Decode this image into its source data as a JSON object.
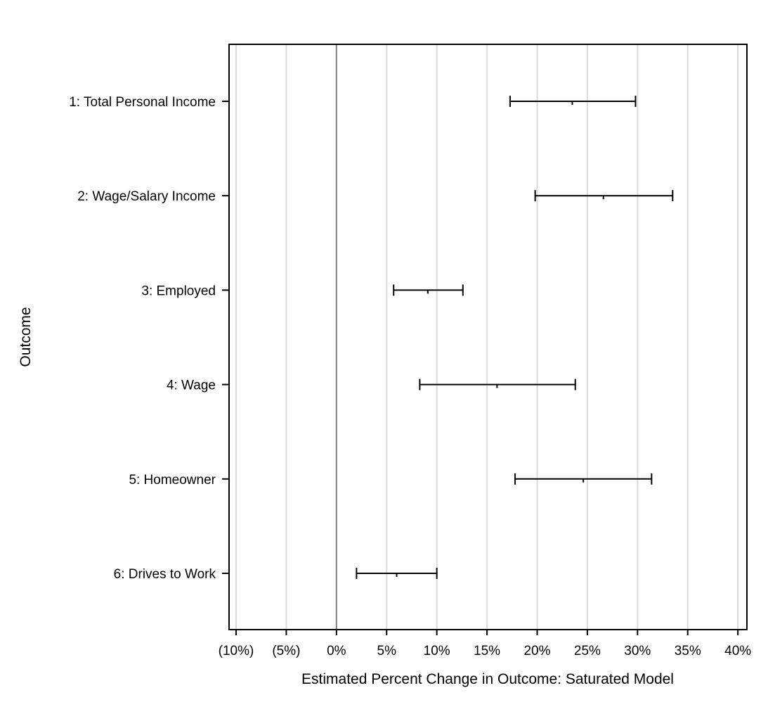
{
  "chart_data": {
    "type": "interval",
    "xlabel": "Estimated Percent Change in Outcome: Saturated Model",
    "ylabel": "Outcome",
    "xlim": [
      -10.7,
      40.9
    ],
    "x_ticks": [
      {
        "value": -10,
        "label": "(10%)"
      },
      {
        "value": -5,
        "label": "(5%)"
      },
      {
        "value": 0,
        "label": "0%"
      },
      {
        "value": 5,
        "label": "5%"
      },
      {
        "value": 10,
        "label": "10%"
      },
      {
        "value": 15,
        "label": "15%"
      },
      {
        "value": 20,
        "label": "20%"
      },
      {
        "value": 25,
        "label": "25%"
      },
      {
        "value": 30,
        "label": "30%"
      },
      {
        "value": 35,
        "label": "35%"
      },
      {
        "value": 40,
        "label": "40%"
      }
    ],
    "reference_line": 0,
    "grid": "vertical",
    "categories": [
      "1: Total Personal Income",
      "2: Wage/Salary Income",
      "3: Employed",
      "4: Wage",
      "5: Homeowner",
      "6: Drives to Work"
    ],
    "estimates": [
      23.5,
      26.6,
      9.1,
      16.0,
      24.6,
      6.0
    ],
    "lower": [
      17.3,
      19.8,
      5.7,
      8.3,
      17.8,
      2.0
    ],
    "upper": [
      29.8,
      33.5,
      12.6,
      23.8,
      31.4,
      10.0
    ]
  }
}
